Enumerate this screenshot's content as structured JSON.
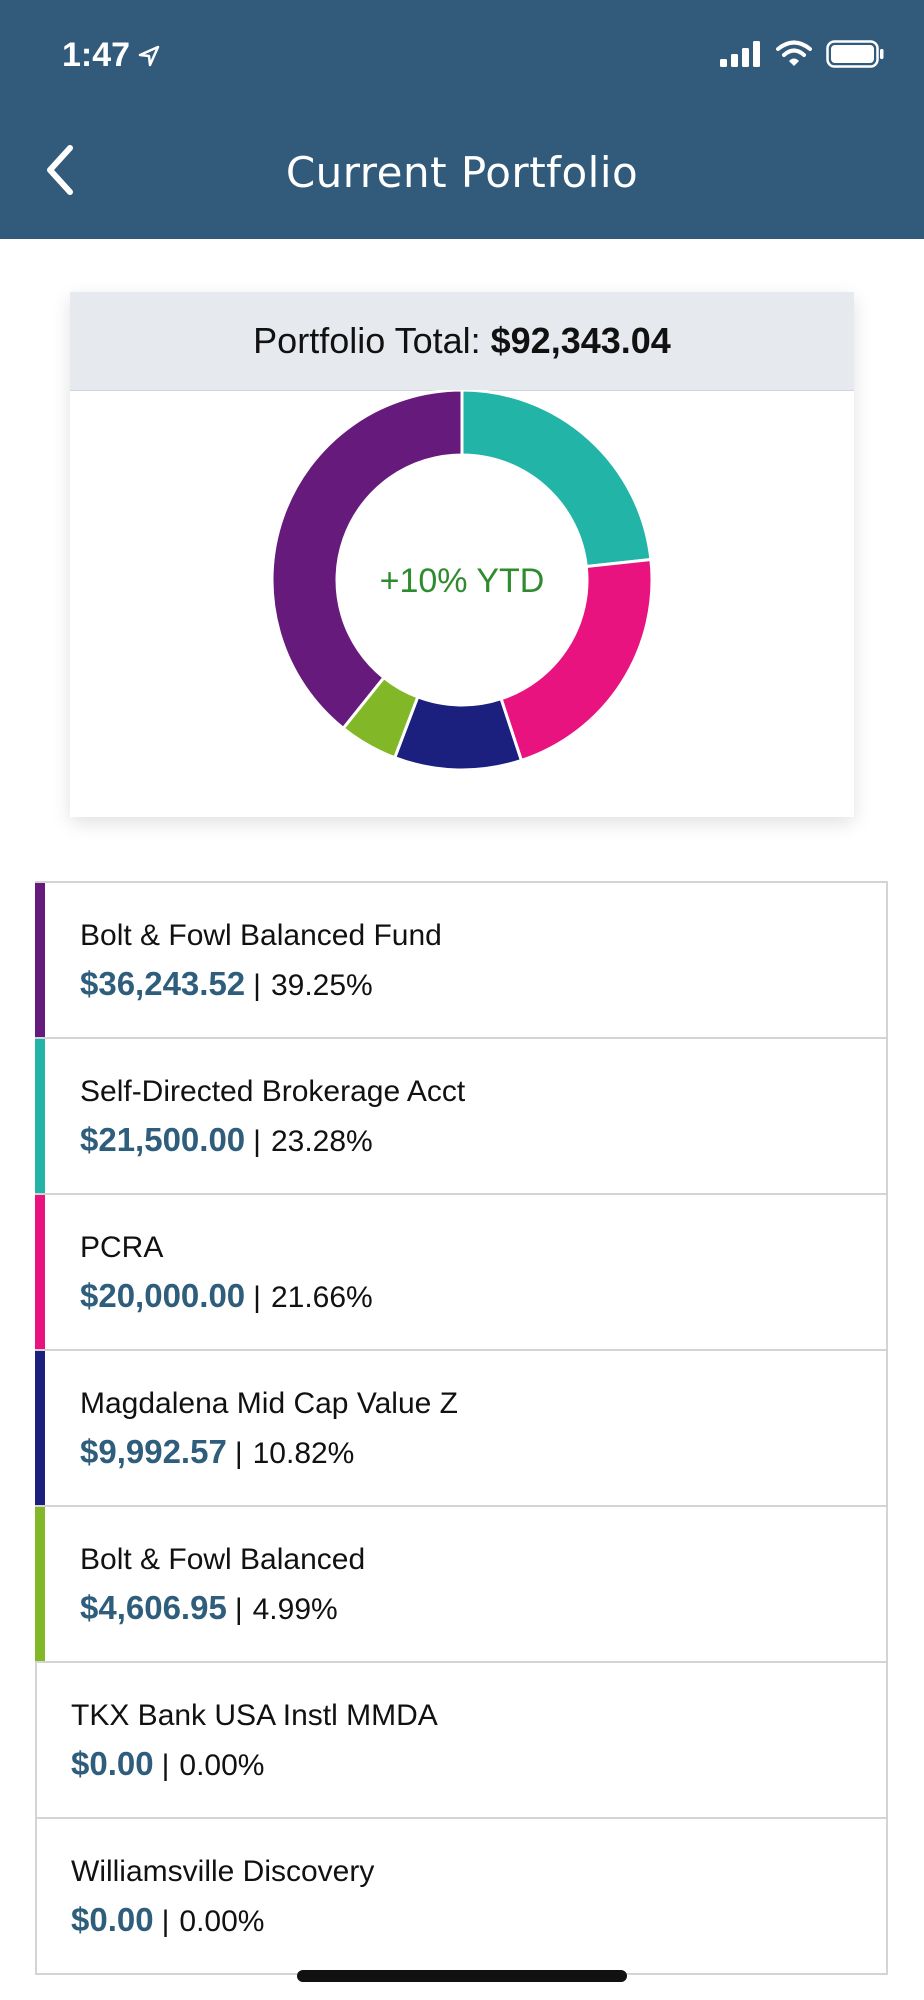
{
  "status_bar": {
    "time": "1:47"
  },
  "nav": {
    "title": "Current Portfolio"
  },
  "summary": {
    "label": "Portfolio Total:",
    "total": "$92,343.04",
    "ytd": "+10% YTD"
  },
  "colors": {
    "header": "#325a7a",
    "amount": "#2f5d7c",
    "ytd": "#2e8b2e"
  },
  "chart_data": {
    "type": "pie",
    "style": "donut",
    "center_label": "+10% YTD",
    "slices": [
      {
        "label": "Self-Directed Brokerage Acct",
        "value": 23.28,
        "color": "#22b5a7"
      },
      {
        "label": "PCRA",
        "value": 21.66,
        "color": "#e8137f"
      },
      {
        "label": "Magdalena Mid Cap Value Z",
        "value": 10.82,
        "color": "#1b1f7e"
      },
      {
        "label": "Bolt & Fowl Balanced",
        "value": 4.99,
        "color": "#82b827"
      },
      {
        "label": "Bolt & Fowl Balanced Fund",
        "value": 39.25,
        "color": "#661a7c"
      }
    ]
  },
  "holdings": [
    {
      "name": "Bolt & Fowl Balanced Fund",
      "amount": "$36,243.52",
      "separator": "|",
      "percent": "39.25%",
      "color": "#661a7c"
    },
    {
      "name": "Self-Directed Brokerage Acct",
      "amount": "$21,500.00",
      "separator": "|",
      "percent": "23.28%",
      "color": "#22b5a7"
    },
    {
      "name": "PCRA",
      "amount": "$20,000.00",
      "separator": "|",
      "percent": "21.66%",
      "color": "#e8137f"
    },
    {
      "name": "Magdalena Mid Cap Value Z",
      "amount": "$9,992.57",
      "separator": "|",
      "percent": "10.82%",
      "color": "#1b1f7e"
    },
    {
      "name": "Bolt & Fowl Balanced",
      "amount": "$4,606.95",
      "separator": "|",
      "percent": "4.99%",
      "color": "#82b827"
    },
    {
      "name": "TKX Bank USA Instl MMDA",
      "amount": "$0.00",
      "separator": "|",
      "percent": "0.00%",
      "color": ""
    },
    {
      "name": "Williamsville Discovery",
      "amount": "$0.00",
      "separator": "|",
      "percent": "0.00%",
      "color": ""
    }
  ]
}
